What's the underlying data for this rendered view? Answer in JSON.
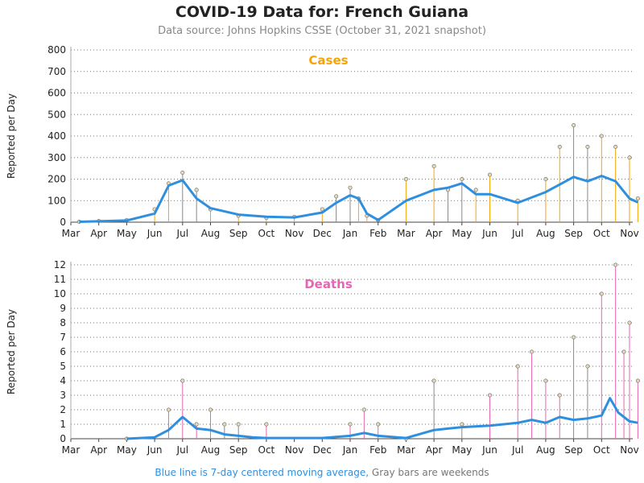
{
  "header": {
    "title": "COVID-19 Data for: French Guiana",
    "subtitle": "Data source: Johns Hopkins CSSE (October 31, 2021 snapshot)"
  },
  "footer": {
    "blue_text": "Blue line is 7-day centered moving average,",
    "gray_text": " Gray bars are weekends"
  },
  "colors": {
    "cases": "#f5a40c",
    "deaths": "#e864b4",
    "average": "#2f8fdf",
    "weekend": "#888888"
  },
  "chart_data": [
    {
      "type": "bar",
      "title": "Cases",
      "ylabel": "Reported per Day",
      "xlabel": "",
      "x_tick_labels": [
        "Mar",
        "Apr",
        "May",
        "Jun",
        "Jul",
        "Aug",
        "Sep",
        "Oct",
        "Nov",
        "Dec",
        "Jan",
        "Feb",
        "Mar",
        "Apr",
        "May",
        "Jun",
        "Jul",
        "Aug",
        "Sep",
        "Oct",
        "Nov"
      ],
      "y_ticks": [
        0,
        100,
        200,
        300,
        400,
        500,
        600,
        700,
        800
      ],
      "ylim": [
        0,
        800
      ],
      "grid": true,
      "series_description": "daily reported values (estimated)",
      "x_months": [
        0.3,
        1,
        2,
        3,
        3.5,
        4,
        4.5,
        5,
        6,
        7,
        8,
        9,
        9.5,
        10,
        10.3,
        10.6,
        11,
        12,
        13,
        13.5,
        14,
        14.5,
        15,
        16,
        17,
        17.5,
        18,
        18.5,
        19,
        19.5,
        20,
        20.3
      ],
      "values": [
        2,
        5,
        10,
        60,
        180,
        230,
        150,
        60,
        30,
        20,
        25,
        60,
        120,
        160,
        110,
        30,
        10,
        200,
        260,
        150,
        200,
        150,
        220,
        100,
        200,
        350,
        450,
        350,
        400,
        350,
        300,
        110
      ],
      "average_x": [
        0.3,
        1,
        2,
        3,
        3.5,
        4,
        4.5,
        5,
        6,
        7,
        8,
        9,
        9.5,
        10,
        10.3,
        10.6,
        11,
        12,
        13,
        13.5,
        14,
        14.5,
        15,
        16,
        17,
        17.5,
        18,
        18.5,
        19,
        19.5,
        20,
        20.3
      ],
      "average": [
        2,
        4,
        8,
        40,
        170,
        195,
        110,
        65,
        35,
        25,
        22,
        45,
        90,
        125,
        110,
        40,
        10,
        100,
        150,
        160,
        180,
        130,
        130,
        90,
        140,
        175,
        210,
        190,
        215,
        190,
        110,
        92
      ]
    },
    {
      "type": "bar",
      "title": "Deaths",
      "ylabel": "Reported per Day",
      "xlabel": "",
      "x_tick_labels": [
        "Mar",
        "Apr",
        "May",
        "Jun",
        "Jul",
        "Aug",
        "Sep",
        "Oct",
        "Nov",
        "Dec",
        "Jan",
        "Feb",
        "Mar",
        "Apr",
        "May",
        "Jun",
        "Jul",
        "Aug",
        "Sep",
        "Oct",
        "Nov"
      ],
      "y_ticks": [
        0,
        1,
        2,
        3,
        4,
        5,
        6,
        7,
        8,
        9,
        10,
        11,
        12
      ],
      "ylim": [
        0,
        12
      ],
      "grid": true,
      "series_description": "daily reported values (estimated)",
      "x_months": [
        2,
        3.5,
        4,
        4.5,
        5,
        5.5,
        6,
        7,
        10,
        10.5,
        11,
        12,
        13,
        14,
        15,
        16,
        16.5,
        17,
        17.5,
        18,
        18.5,
        19,
        19.5,
        19.8,
        20,
        20.3
      ],
      "values": [
        0,
        2,
        4,
        1,
        2,
        1,
        1,
        1,
        1,
        2,
        1,
        0,
        4,
        1,
        3,
        5,
        6,
        4,
        3,
        7,
        5,
        10,
        12,
        6,
        8,
        4
      ],
      "average_x": [
        2,
        3,
        3.5,
        4,
        4.5,
        5,
        5.5,
        6,
        6.5,
        7,
        9,
        10,
        10.5,
        11,
        12,
        13,
        13.5,
        14,
        15,
        16,
        16.5,
        17,
        17.5,
        18,
        18.5,
        19,
        19.3,
        19.6,
        20,
        20.3
      ],
      "average": [
        0,
        0.1,
        0.6,
        1.5,
        0.7,
        0.6,
        0.3,
        0.2,
        0.1,
        0.05,
        0.05,
        0.2,
        0.4,
        0.2,
        0.05,
        0.6,
        0.7,
        0.8,
        0.9,
        1.1,
        1.3,
        1.1,
        1.5,
        1.3,
        1.4,
        1.6,
        2.8,
        1.8,
        1.2,
        1.1
      ]
    }
  ]
}
